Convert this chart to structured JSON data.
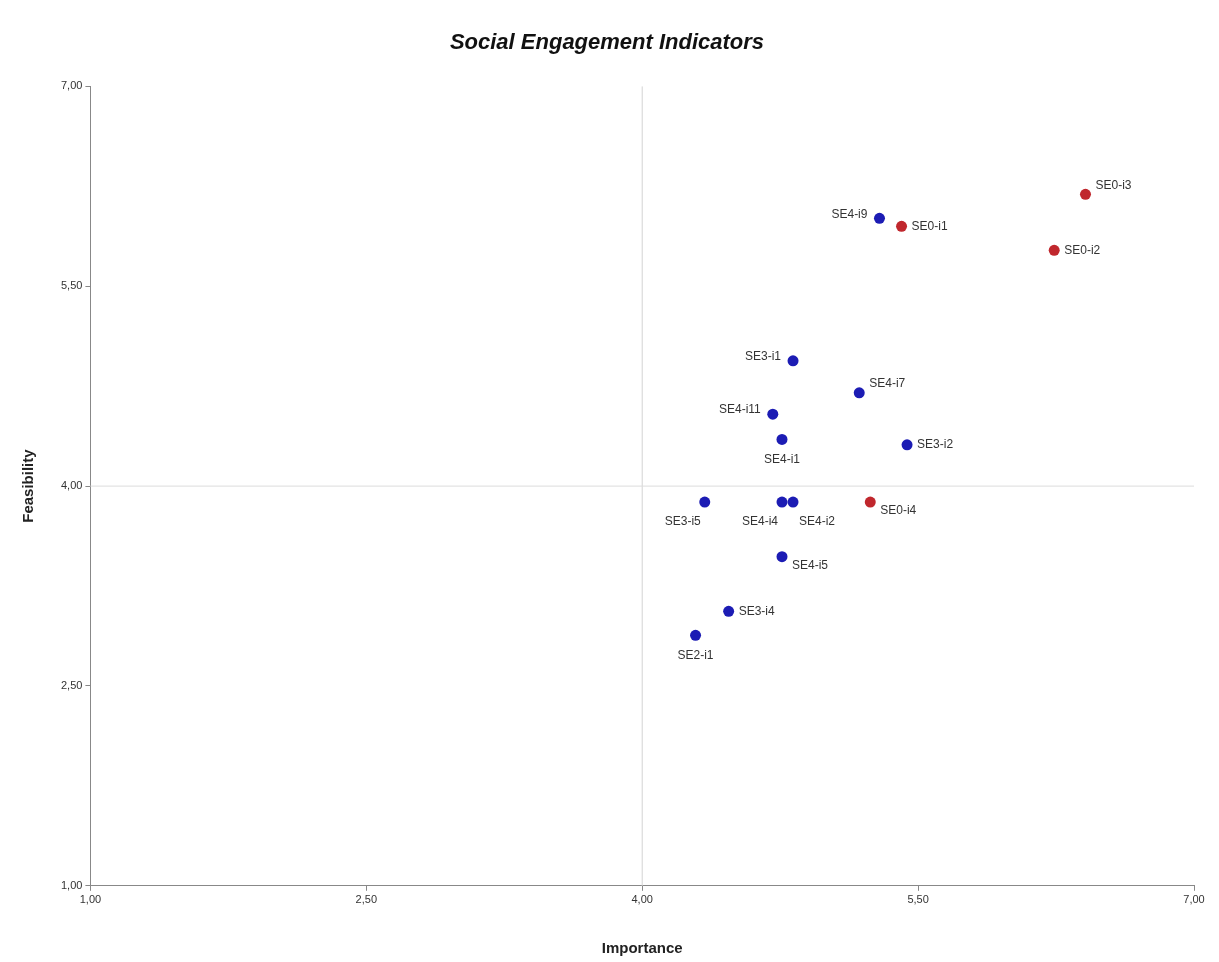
{
  "chart_data": {
    "type": "scatter",
    "title": "Social Engagement Indicators",
    "xlabel": "Importance",
    "ylabel": "Feasibility",
    "series": [
      {
        "color": "#c0272d",
        "x": [
          6.41,
          5.41,
          6.24,
          5.24
        ],
        "values": [
          6.19,
          5.95,
          5.77,
          3.88
        ]
      },
      {
        "color": "#1c1cb4",
        "x": [
          5.29,
          4.82,
          5.18,
          4.71,
          4.76,
          5.44,
          4.34,
          4.76,
          4.82,
          4.76,
          4.47,
          4.29
        ],
        "values": [
          6.01,
          4.94,
          4.7,
          4.54,
          4.35,
          4.31,
          3.88,
          3.88,
          3.88,
          3.47,
          3.06,
          2.88
        ]
      }
    ],
    "xlim": [
      1,
      7
    ],
    "ylim": [
      1,
      7
    ],
    "xticks": [
      {
        "value": 1,
        "label": "1,00"
      },
      {
        "value": 2.5,
        "label": "2,50"
      },
      {
        "value": 4,
        "label": "4,00"
      },
      {
        "value": 5.5,
        "label": "5,50"
      },
      {
        "value": 7,
        "label": "7,00"
      }
    ],
    "yticks": [
      {
        "value": 1,
        "label": "1,00"
      },
      {
        "value": 2.5,
        "label": "2,50"
      },
      {
        "value": 4,
        "label": "4,00"
      },
      {
        "value": 5.5,
        "label": "5,50"
      },
      {
        "value": 7,
        "label": "7,00"
      }
    ],
    "ref_lines": [
      {
        "axis": "x",
        "value": 4,
        "color": "#d4d4d4"
      },
      {
        "axis": "y",
        "value": 4,
        "color": "#dcdcdc"
      }
    ],
    "marker": "circle",
    "grid": false,
    "legend": false,
    "annotations": [
      {
        "text": "SE0-i3",
        "x": 6.41,
        "y": 6.19
      },
      {
        "text": "SE0-i1",
        "x": 5.41,
        "y": 5.95
      },
      {
        "text": "SE0-i2",
        "x": 6.24,
        "y": 5.77
      },
      {
        "text": "SE0-i4",
        "x": 5.24,
        "y": 3.88
      },
      {
        "text": "SE4-i9",
        "x": 5.29,
        "y": 6.01
      },
      {
        "text": "SE3-i1",
        "x": 4.82,
        "y": 4.94
      },
      {
        "text": "SE4-i7",
        "x": 5.18,
        "y": 4.7
      },
      {
        "text": "SE4-i11",
        "x": 4.71,
        "y": 4.54
      },
      {
        "text": "SE4-i1",
        "x": 4.76,
        "y": 4.35
      },
      {
        "text": "SE3-i2",
        "x": 5.44,
        "y": 4.31
      },
      {
        "text": "SE3-i5",
        "x": 4.34,
        "y": 3.88
      },
      {
        "text": "SE4-i4",
        "x": 4.76,
        "y": 3.88
      },
      {
        "text": "SE4-i2",
        "x": 4.82,
        "y": 3.88
      },
      {
        "text": "SE4-i5",
        "x": 4.76,
        "y": 3.47
      },
      {
        "text": "SE3-i4",
        "x": 4.47,
        "y": 3.06
      },
      {
        "text": "SE2-i1",
        "x": 4.29,
        "y": 2.88
      }
    ]
  }
}
